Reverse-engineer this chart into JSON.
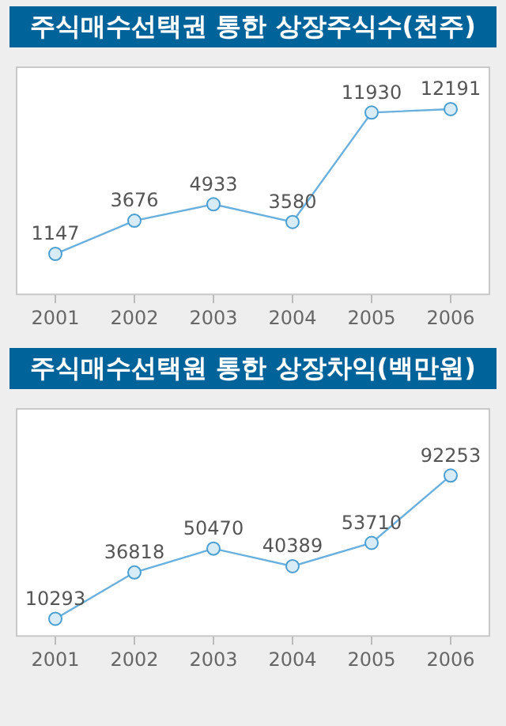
{
  "chart_data": [
    {
      "type": "line",
      "title": "주식매수선택권 통한 상장주식수(천주)",
      "categories": [
        "2001",
        "2002",
        "2003",
        "2004",
        "2005",
        "2006"
      ],
      "values": [
        1147,
        3676,
        4933,
        3580,
        11930,
        12191
      ],
      "color": "#6ab0de",
      "marker": "circle",
      "data_labels": true
    },
    {
      "type": "line",
      "title": "주식매수선택원 통한 상장차익(백만원)",
      "categories": [
        "2001",
        "2002",
        "2003",
        "2004",
        "2005",
        "2006"
      ],
      "values": [
        10293,
        36818,
        50470,
        40389,
        53710,
        92253
      ],
      "color": "#6ab0de",
      "marker": "circle",
      "data_labels": true
    }
  ]
}
